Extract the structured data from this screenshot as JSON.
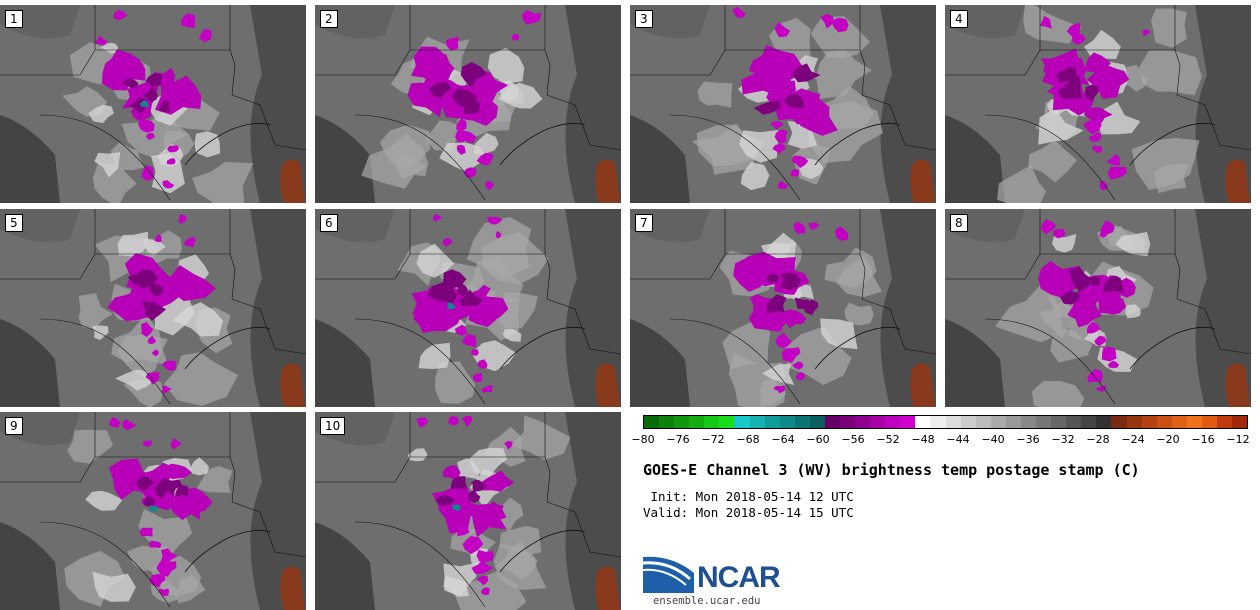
{
  "panels": [
    "1",
    "2",
    "3",
    "4",
    "5",
    "6",
    "7",
    "8",
    "9",
    "10"
  ],
  "colorbar": {
    "colors": [
      "#0a6b0a",
      "#0d800d",
      "#10960f",
      "#13ad12",
      "#17c816",
      "#19dd19",
      "#17c8c8",
      "#14b2b2",
      "#119c9c",
      "#0e8888",
      "#0b7474",
      "#086060",
      "#650065",
      "#7a007a",
      "#900090",
      "#a600a6",
      "#bc00bc",
      "#d000d0",
      "#ffffff",
      "#eeeeee",
      "#dddddd",
      "#cccccc",
      "#bbbbbb",
      "#aaaaaa",
      "#999999",
      "#888888",
      "#777777",
      "#666666",
      "#555555",
      "#444444",
      "#333333",
      "#7a2a0e",
      "#963610",
      "#b24212",
      "#cc5014",
      "#e06016",
      "#ee7018",
      "#e05a14",
      "#c23a10",
      "#a2280c"
    ],
    "ticks": [
      "−80",
      "−76",
      "−72",
      "−68",
      "−64",
      "−60",
      "−56",
      "−52",
      "−48",
      "−44",
      "−40",
      "−36",
      "−32",
      "−28",
      "−24",
      "−20",
      "−16",
      "−12"
    ]
  },
  "title": "GOES-E Channel 3 (WV) brightness temp postage stamp (C)",
  "init_line": " Init: Mon 2018-05-14 12 UTC",
  "valid_line": "Valid: Mon 2018-05-14 15 UTC",
  "logo_text": "NCAR",
  "url": "ensemble.ucar.edu",
  "icons": {
    "logo": "ncar-logo-icon"
  }
}
